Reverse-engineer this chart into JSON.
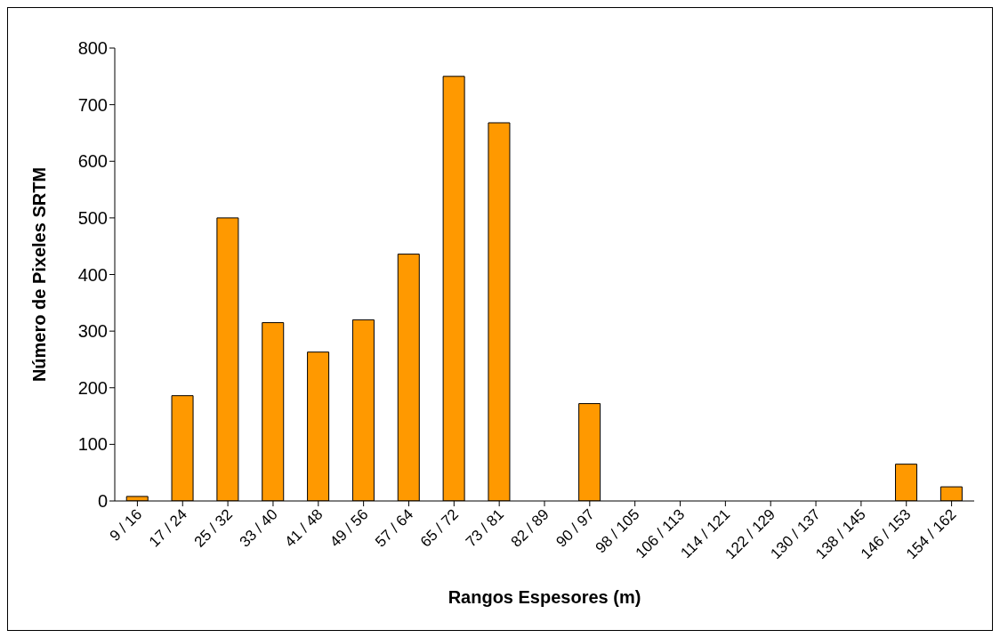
{
  "chart_data": {
    "type": "bar",
    "xlabel": "Rangos Espesores (m)",
    "ylabel": "Número de Pixeles SRTM",
    "categories": [
      "9 / 16",
      "17 / 24",
      "25 / 32",
      "33 / 40",
      "41 / 48",
      "49 / 56",
      "57 / 64",
      "65 / 72",
      "73 / 81",
      "82 / 89",
      "90 / 97",
      "98 / 105",
      "106 / 113",
      "114 / 121",
      "122 / 129",
      "130 / 137",
      "138 / 145",
      "146 / 153",
      "154 / 162"
    ],
    "values": [
      8,
      186,
      500,
      315,
      263,
      320,
      436,
      750,
      668,
      0,
      172,
      0,
      0,
      0,
      0,
      0,
      0,
      65,
      25
    ],
    "color": "#ff9900",
    "ylim": [
      0,
      800
    ],
    "yticks": [
      0,
      100,
      200,
      300,
      400,
      500,
      600,
      700,
      800
    ],
    "grid": false
  }
}
